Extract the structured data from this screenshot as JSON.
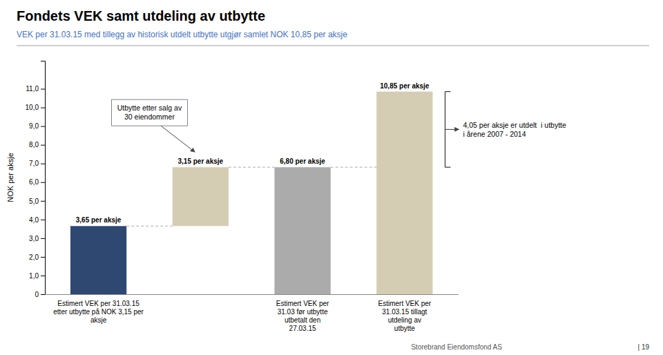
{
  "chart_data": {
    "type": "waterfall",
    "title": "Fondets VEK samt utdeling av utbytte",
    "subtitle": "VEK per 31.03.15 med tillegg av historisk utdelt utbytte utgjør samlet NOK 10,85 per aksje",
    "ylabel": "NOK per aksje",
    "categories": [
      "Estimert VEK per 31.03.15\netter utbytte på NOK 3,15 per\naksje",
      null,
      "Estimert VEK per\n31.03 før utbytte\nutbetalt den\n27.03.15",
      "Estimert VEK per\n31.03.15 tillagt\nutdeling av\nutbytte"
    ],
    "values": [
      3.65,
      3.15,
      6.8,
      10.85
    ],
    "value_labels": [
      "3,65 per aksje",
      "3,15 per aksje",
      "6,80 per aksje",
      "10,85 per aksje"
    ],
    "data_labels": true,
    "stacked": [
      false,
      true,
      false,
      false
    ],
    "colors": [
      "#2E4872",
      "#D4CDB4",
      "#ABABAB",
      "#D4CDB4"
    ],
    "ylim": [
      0,
      12.5
    ],
    "yticks": [
      0,
      {
        "value": 1.0,
        "label": "1,0"
      },
      {
        "value": 2.0,
        "label": "2,0"
      },
      {
        "value": 3.0,
        "label": "3,0"
      },
      {
        "value": 4.0,
        "label": "4,0"
      },
      {
        "value": 5.0,
        "label": "5,0"
      },
      {
        "value": 6.0,
        "label": "6,0"
      },
      {
        "value": 7.0,
        "label": "7,0"
      },
      {
        "value": 8.0,
        "label": "8,0"
      },
      {
        "value": 9.0,
        "label": "9,0"
      },
      {
        "value": 10.0,
        "label": "10,0"
      },
      {
        "value": 11.0,
        "label": "11,0"
      }
    ],
    "grid": false,
    "annotations": [
      "Utbytte etter salg av\n30 eiendommer",
      "4,05 per aksje er utdelt  i utbytte\ni årene 2007 - 2014"
    ],
    "footer": [
      "Storebrand Eiendomsfond AS",
      "| 19"
    ]
  }
}
